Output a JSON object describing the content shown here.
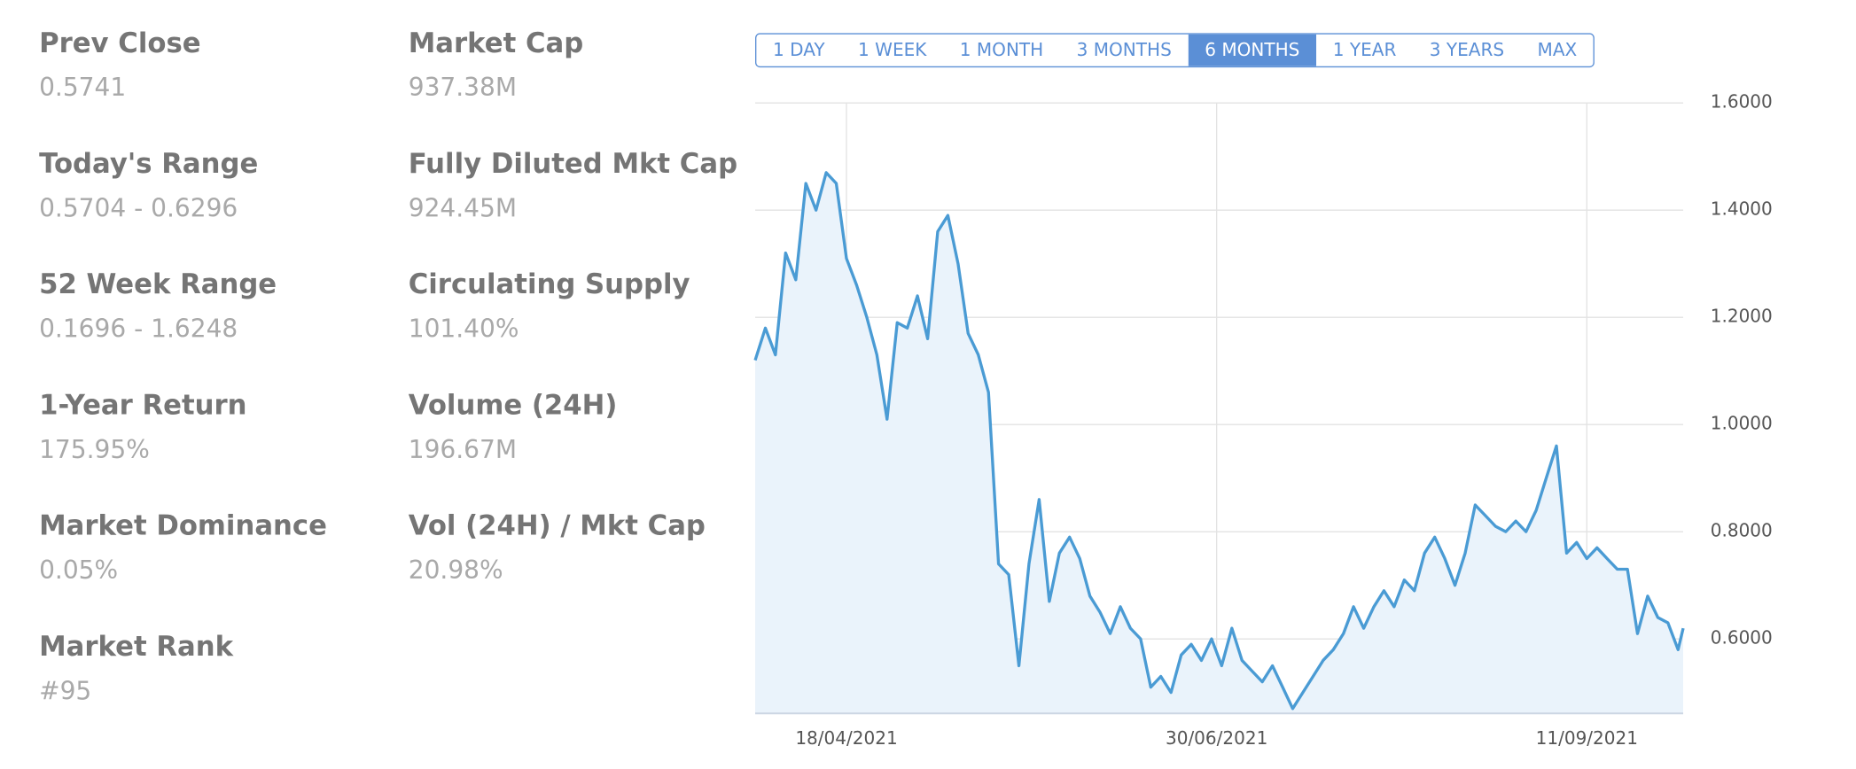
{
  "stats": [
    {
      "label": "Prev Close",
      "value": "0.5741"
    },
    {
      "label": "Today's Range",
      "value": "0.5704 - 0.6296"
    },
    {
      "label": "52 Week Range",
      "value": "0.1696 - 1.6248"
    },
    {
      "label": "1-Year Return",
      "value": "175.95%"
    },
    {
      "label": "Market Dominance",
      "value": "0.05%"
    },
    {
      "label": "Market Rank",
      "value": "#95"
    },
    {
      "label": "Market Cap",
      "value": "937.38M"
    },
    {
      "label": "Fully Diluted Mkt Cap",
      "value": "924.45M"
    },
    {
      "label": "Circulating Supply",
      "value": "101.40%"
    },
    {
      "label": "Volume (24H)",
      "value": "196.67M"
    },
    {
      "label": "Vol (24H) / Mkt Cap",
      "value": "20.98%"
    }
  ],
  "range_tabs": {
    "options": [
      "1 DAY",
      "1 WEEK",
      "1 MONTH",
      "3 MONTHS",
      "6 MONTHS",
      "1 YEAR",
      "3 YEARS",
      "MAX"
    ],
    "active": 4
  },
  "chart_data": {
    "type": "area",
    "color": "#4a9bd4",
    "fill": "#eaf3fb",
    "grid": true,
    "x": [
      "31/03/2021",
      "02/04/2021",
      "04/04/2021",
      "06/04/2021",
      "08/04/2021",
      "10/04/2021",
      "12/04/2021",
      "14/04/2021",
      "16/04/2021",
      "18/04/2021",
      "20/04/2021",
      "22/04/2021",
      "24/04/2021",
      "26/04/2021",
      "28/04/2021",
      "30/04/2021",
      "02/05/2021",
      "04/05/2021",
      "06/05/2021",
      "08/05/2021",
      "10/05/2021",
      "12/05/2021",
      "14/05/2021",
      "16/05/2021",
      "18/05/2021",
      "20/05/2021",
      "22/05/2021",
      "24/05/2021",
      "26/05/2021",
      "28/05/2021",
      "30/05/2021",
      "01/06/2021",
      "03/06/2021",
      "05/06/2021",
      "07/06/2021",
      "09/06/2021",
      "11/06/2021",
      "13/06/2021",
      "15/06/2021",
      "17/06/2021",
      "19/06/2021",
      "21/06/2021",
      "23/06/2021",
      "25/06/2021",
      "27/06/2021",
      "29/06/2021",
      "01/07/2021",
      "03/07/2021",
      "05/07/2021",
      "07/07/2021",
      "09/07/2021",
      "11/07/2021",
      "13/07/2021",
      "15/07/2021",
      "17/07/2021",
      "19/07/2021",
      "21/07/2021",
      "23/07/2021",
      "25/07/2021",
      "27/07/2021",
      "29/07/2021",
      "31/07/2021",
      "02/08/2021",
      "04/08/2021",
      "06/08/2021",
      "08/08/2021",
      "10/08/2021",
      "12/08/2021",
      "14/08/2021",
      "16/08/2021",
      "18/08/2021",
      "20/08/2021",
      "22/08/2021",
      "24/08/2021",
      "26/08/2021",
      "28/08/2021",
      "30/08/2021",
      "01/09/2021",
      "03/09/2021",
      "05/09/2021",
      "07/09/2021",
      "09/09/2021",
      "11/09/2021",
      "13/09/2021",
      "15/09/2021",
      "17/09/2021",
      "19/09/2021",
      "21/09/2021",
      "23/09/2021",
      "25/09/2021",
      "27/09/2021",
      "29/09/2021",
      "30/09/2021"
    ],
    "values": [
      1.12,
      1.18,
      1.13,
      1.32,
      1.27,
      1.45,
      1.4,
      1.47,
      1.45,
      1.31,
      1.26,
      1.2,
      1.13,
      1.01,
      1.19,
      1.18,
      1.24,
      1.16,
      1.36,
      1.39,
      1.3,
      1.17,
      1.13,
      1.06,
      0.74,
      0.72,
      0.55,
      0.74,
      0.86,
      0.67,
      0.76,
      0.79,
      0.75,
      0.68,
      0.65,
      0.61,
      0.66,
      0.62,
      0.6,
      0.51,
      0.53,
      0.5,
      0.57,
      0.59,
      0.56,
      0.6,
      0.55,
      0.62,
      0.56,
      0.54,
      0.52,
      0.55,
      0.51,
      0.47,
      0.5,
      0.53,
      0.56,
      0.58,
      0.61,
      0.66,
      0.62,
      0.66,
      0.69,
      0.66,
      0.71,
      0.69,
      0.76,
      0.79,
      0.75,
      0.7,
      0.76,
      0.85,
      0.83,
      0.81,
      0.8,
      0.82,
      0.8,
      0.84,
      0.9,
      0.96,
      0.76,
      0.78,
      0.75,
      0.77,
      0.75,
      0.73,
      0.73,
      0.61,
      0.68,
      0.64,
      0.63,
      0.58,
      0.62
    ],
    "xlim": [
      "31/03/2021",
      "30/09/2021"
    ],
    "xticks": [
      "18/04/2021",
      "30/06/2021",
      "11/09/2021"
    ],
    "ylim": [
      0.461,
      1.6
    ],
    "yticks": [
      {
        "value": 0.6,
        "label": "0.6000"
      },
      {
        "value": 0.8,
        "label": "0.8000"
      },
      {
        "value": 1.0,
        "label": "1.0000"
      },
      {
        "value": 1.2,
        "label": "1.2000"
      },
      {
        "value": 1.4,
        "label": "1.4000"
      },
      {
        "value": 1.6,
        "label": "1.6000"
      }
    ]
  }
}
